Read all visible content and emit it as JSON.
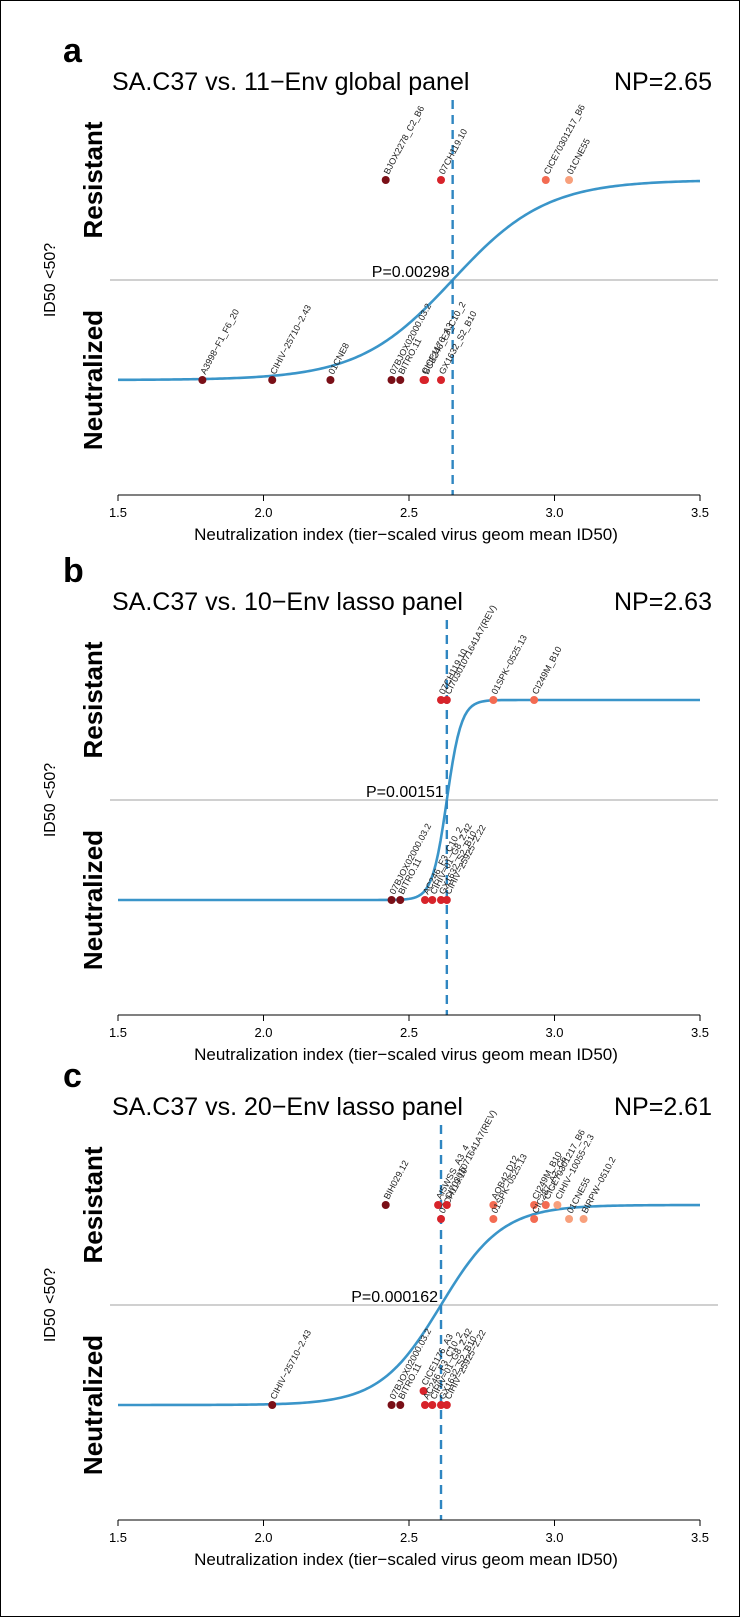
{
  "shared": {
    "xlabel": "Neutralization index (tier−scaled virus geom mean ID50)",
    "ylabel": "ID50 <50?",
    "ylabel_top": "Resistant",
    "ylabel_bottom": "Neutralized",
    "x_ticks": [
      "1.5",
      "2.0",
      "2.5",
      "3.0",
      "3.5"
    ]
  },
  "colors": {
    "curve": "#3a95c9",
    "threshold_line": "#b5b5b5",
    "np_line": "#2f86c1",
    "dark_red": "#7a0f17",
    "red": "#d7232a",
    "light_red": "#f36b52",
    "salmon": "#f8a07c"
  },
  "chart_data": [
    {
      "type": "scatter",
      "panel_letter": "a",
      "title": "SA.C37 vs. 11−Env global panel",
      "np_label": "NP=2.65",
      "np_value": 2.65,
      "p_label": "P=0.00298",
      "xlim": [
        1.5,
        3.5
      ],
      "ylim": [
        0,
        1
      ],
      "curve_slope": 6.2,
      "points": [
        {
          "label": "BJOX2278_C2_B6",
          "x": 2.42,
          "y": 1,
          "shade": "dark_red"
        },
        {
          "label": "07CH119.10",
          "x": 2.61,
          "y": 1,
          "shade": "red"
        },
        {
          "label": "CICE70301217_B6",
          "x": 2.97,
          "y": 1,
          "shade": "light_red"
        },
        {
          "label": "01CNE55",
          "x": 3.05,
          "y": 1,
          "shade": "salmon"
        },
        {
          "label": "A3998−F1_F6_20",
          "x": 1.79,
          "y": 0,
          "shade": "dark_red"
        },
        {
          "label": "CIHIV−25710−2.43",
          "x": 2.03,
          "y": 0,
          "shade": "dark_red"
        },
        {
          "label": "01CNE8",
          "x": 2.23,
          "y": 0,
          "shade": "dark_red"
        },
        {
          "label": "07BJOX02000.03.2",
          "x": 2.44,
          "y": 0,
          "shade": "dark_red"
        },
        {
          "label": "BITRO.11",
          "x": 2.47,
          "y": 0,
          "shade": "dark_red"
        },
        {
          "label": "CICE1176_A3",
          "x": 2.55,
          "y": 0,
          "shade": "red"
        },
        {
          "label": "BCE246_F3_C10_2",
          "x": 2.555,
          "y": 0,
          "shade": "red"
        },
        {
          "label": "GX1632_S2_B10",
          "x": 2.61,
          "y": 0,
          "shade": "red"
        }
      ]
    },
    {
      "type": "scatter",
      "panel_letter": "b",
      "title": "SA.C37 vs. 10−Env lasso panel",
      "np_label": "NP=2.63",
      "np_value": 2.63,
      "p_label": "P=0.00151",
      "xlim": [
        1.5,
        3.5
      ],
      "ylim": [
        0,
        1
      ],
      "curve_slope": 40,
      "points": [
        {
          "label": "07CH119.10",
          "x": 2.61,
          "y": 1,
          "shade": "red"
        },
        {
          "label": "CI70301071641A7(REV)",
          "x": 2.63,
          "y": 1,
          "shade": "red"
        },
        {
          "label": "01SPK−0525.13",
          "x": 2.79,
          "y": 1,
          "shade": "light_red"
        },
        {
          "label": "CI249M_B10",
          "x": 2.93,
          "y": 1,
          "shade": "light_red"
        },
        {
          "label": "07BJOX02000.03.2",
          "x": 2.44,
          "y": 0,
          "shade": "dark_red"
        },
        {
          "label": "BITRO.11",
          "x": 2.47,
          "y": 0,
          "shade": "dark_red"
        },
        {
          "label": "AC246_F3_C10_2",
          "x": 2.555,
          "y": 0,
          "shade": "red"
        },
        {
          "label": "CIHIV−01_G8_2.42",
          "x": 2.58,
          "y": 0,
          "shade": "red"
        },
        {
          "label": "GX1632_S2_B10",
          "x": 2.61,
          "y": 0,
          "shade": "red"
        },
        {
          "label": "CIHIV−25925−2.22",
          "x": 2.63,
          "y": 0,
          "shade": "red"
        }
      ]
    },
    {
      "type": "scatter",
      "panel_letter": "c",
      "title": "SA.C37 vs. 20−Env lasso panel",
      "np_label": "NP=2.61",
      "np_value": 2.61,
      "p_label": "P=0.000162",
      "xlim": [
        1.5,
        3.5
      ],
      "ylim": [
        0,
        1
      ],
      "curve_slope": 9.5,
      "points": [
        {
          "label": "BIH029.12",
          "x": 2.42,
          "y": 1,
          "shade": "dark_red"
        },
        {
          "label": "AI5WSS_A3_4",
          "x": 2.6,
          "y": 1,
          "shade": "red"
        },
        {
          "label": "07CH119.10",
          "x": 2.61,
          "y": 0.93,
          "shade": "red"
        },
        {
          "label": "CI70301071641A7(REV)",
          "x": 2.63,
          "y": 1,
          "shade": "red"
        },
        {
          "label": "AOB42.D12",
          "x": 2.79,
          "y": 1,
          "shade": "light_red"
        },
        {
          "label": "01SPK−0525.13",
          "x": 2.79,
          "y": 0.93,
          "shade": "light_red"
        },
        {
          "label": "CI249M_B10",
          "x": 2.93,
          "y": 1,
          "shade": "light_red"
        },
        {
          "label": "CIC287_A2_C6",
          "x": 2.93,
          "y": 0.93,
          "shade": "light_red"
        },
        {
          "label": "CICE70301217_B6",
          "x": 2.97,
          "y": 1,
          "shade": "light_red"
        },
        {
          "label": "CIHIV−10055−2.3",
          "x": 3.01,
          "y": 1,
          "shade": "salmon"
        },
        {
          "label": "01CNE55",
          "x": 3.05,
          "y": 0.93,
          "shade": "salmon"
        },
        {
          "label": "BIRPW−0510.2",
          "x": 3.1,
          "y": 0.93,
          "shade": "salmon"
        },
        {
          "label": "CIHIV−25710−2.43",
          "x": 2.03,
          "y": 0,
          "shade": "dark_red"
        },
        {
          "label": "07BJOX02000.03.2",
          "x": 2.44,
          "y": 0,
          "shade": "dark_red"
        },
        {
          "label": "BITRO.11",
          "x": 2.47,
          "y": 0,
          "shade": "dark_red"
        },
        {
          "label": "CICE1176_A3",
          "x": 2.55,
          "y": 0.07,
          "shade": "red"
        },
        {
          "label": "AC246_F3_C10_2",
          "x": 2.555,
          "y": 0,
          "shade": "red"
        },
        {
          "label": "CIHIV−01_G8_2.42",
          "x": 2.58,
          "y": 0,
          "shade": "red"
        },
        {
          "label": "GX1632_S2_B10",
          "x": 2.61,
          "y": 0,
          "shade": "red"
        },
        {
          "label": "CIHIV−25925−2.22",
          "x": 2.63,
          "y": 0,
          "shade": "red"
        }
      ]
    }
  ]
}
